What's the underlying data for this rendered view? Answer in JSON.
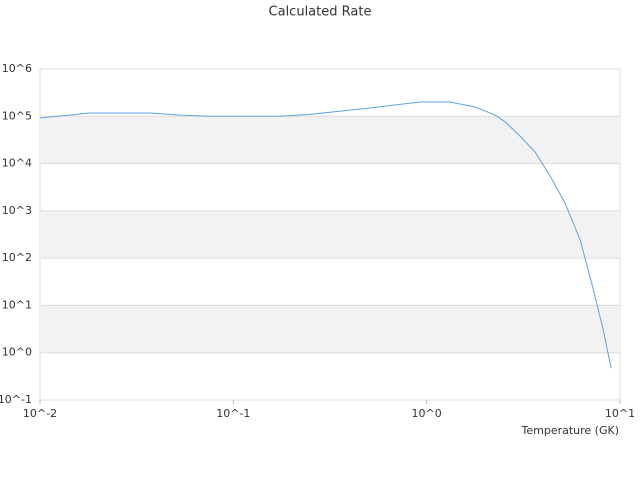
{
  "chart_data": {
    "type": "line",
    "title": "Calculated Rate",
    "xlabel": "Temperature (GK)",
    "xscale": "log",
    "yscale": "log",
    "grid": true,
    "xlim": [
      0.01,
      10
    ],
    "ylim": [
      0.1,
      1000000
    ],
    "xticks": [
      {
        "value": 0.01,
        "label": "10^-2"
      },
      {
        "value": 0.1,
        "label": "10^-1"
      },
      {
        "value": 1,
        "label": "10^0"
      },
      {
        "value": 10,
        "label": "10^1"
      }
    ],
    "yticks": [
      {
        "value": 0.1,
        "label": "10^-1"
      },
      {
        "value": 1,
        "label": "10^0"
      },
      {
        "value": 10,
        "label": "10^1"
      },
      {
        "value": 100,
        "label": "10^2"
      },
      {
        "value": 1000,
        "label": "10^3"
      },
      {
        "value": 10000,
        "label": "10^4"
      },
      {
        "value": 100000,
        "label": "10^5"
      },
      {
        "value": 1000000,
        "label": "10^6"
      }
    ],
    "x": [
      0.01,
      0.0182,
      0.0371,
      0.053,
      0.0757,
      0.1745,
      0.249,
      0.509,
      0.925,
      1.32,
      1.78,
      2.26,
      2.55,
      3.04,
      3.64,
      4.35,
      5.2,
      6.22,
      7.18,
      8.18,
      9.0
    ],
    "series": [
      {
        "color": "#5ba3e8",
        "values": [
          92000,
          117000,
          117000,
          106000,
          100000,
          100000,
          110000,
          150000,
          200000,
          200000,
          157000,
          106000,
          76000,
          38000,
          17500,
          5500,
          1450,
          245,
          27,
          3.1,
          0.47
        ]
      }
    ]
  }
}
